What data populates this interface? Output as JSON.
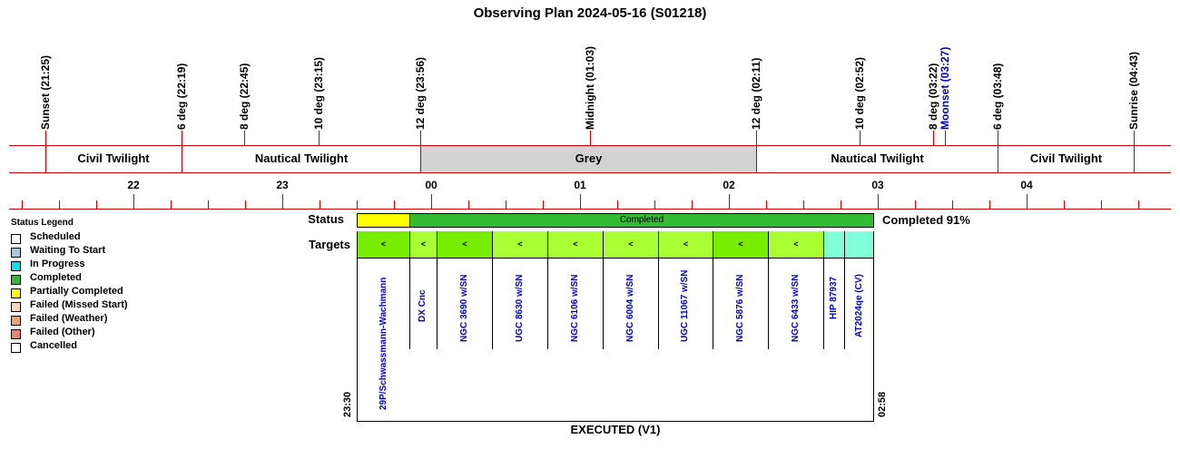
{
  "title": "Observing Plan 2024-05-16 (S01218)",
  "events": [
    {
      "label": "Sunset (21:25)",
      "color": "#000000"
    },
    {
      "label": "6 deg (22:19)",
      "color": "#000000"
    },
    {
      "label": "8 deg (22:45)",
      "color": "#000000"
    },
    {
      "label": "10 deg (23:15)",
      "color": "#000000"
    },
    {
      "label": "12 deg (23:56)",
      "color": "#000000"
    },
    {
      "label": "Midnight (01:03)",
      "color": "#000000"
    },
    {
      "label": "12 deg (02:11)",
      "color": "#000000"
    },
    {
      "label": "10 deg (02:52)",
      "color": "#000000"
    },
    {
      "label": "8 deg (03:22)",
      "color": "#000000"
    },
    {
      "label": "Moonset (03:27)",
      "color": "#0000cc"
    },
    {
      "label": "6 deg (03:48)",
      "color": "#000000"
    },
    {
      "label": "Sunrise (04:43)",
      "color": "#000000"
    }
  ],
  "twilight_bands": [
    "Civil Twilight",
    "Nautical Twilight",
    "Grey",
    "Nautical Twilight",
    "Civil Twilight"
  ],
  "hours": [
    "22",
    "23",
    "00",
    "01",
    "02",
    "03",
    "04"
  ],
  "legend": {
    "title": "Status Legend",
    "items": [
      {
        "label": "Scheduled",
        "color": "#ffffff"
      },
      {
        "label": "Waiting To Start",
        "color": "#a6c8e0"
      },
      {
        "label": "In Progress",
        "color": "#00e5e5"
      },
      {
        "label": "Completed",
        "color": "#33bb33"
      },
      {
        "label": "Partially Completed",
        "color": "#ffff00"
      },
      {
        "label": "Failed (Missed Start)",
        "color": "#fcd5b4"
      },
      {
        "label": "Failed (Weather)",
        "color": "#f4a070"
      },
      {
        "label": "Failed (Other)",
        "color": "#f08070"
      },
      {
        "label": "Cancelled",
        "color": "#ffffff"
      }
    ]
  },
  "plan": {
    "status_label": "Status",
    "targets_label": "Targets",
    "status_text": "Completed",
    "status_summary": "Completed 91%",
    "start_time": "23:30",
    "end_time": "02:58",
    "footer": "EXECUTED (V1)",
    "colors": {
      "partial": "#ffff00",
      "completed": "#33bb33",
      "target_green": "#aaff33",
      "target_dark": "#77ee00",
      "target_cyan": "#80ffd9"
    },
    "targets": [
      {
        "name": "29P/Schwassmann-Wachmann",
        "marker": "<"
      },
      {
        "name": "DX Cnc",
        "marker": "<"
      },
      {
        "name": "NGC 3690 w/SN",
        "marker": "<"
      },
      {
        "name": "UGC 8630 w/SN",
        "marker": "<"
      },
      {
        "name": "NGC 6106 w/SN",
        "marker": "<"
      },
      {
        "name": "NGC 6004 w/SN",
        "marker": "<"
      },
      {
        "name": "UGC 11067 w/SN",
        "marker": "<"
      },
      {
        "name": "NGC 5876 w/SN",
        "marker": "<"
      },
      {
        "name": "NGC 6433 w/SN",
        "marker": "<"
      },
      {
        "name": "HIP 87937",
        "marker": ""
      },
      {
        "name": "AT2024qe (CV)",
        "marker": ""
      }
    ]
  }
}
